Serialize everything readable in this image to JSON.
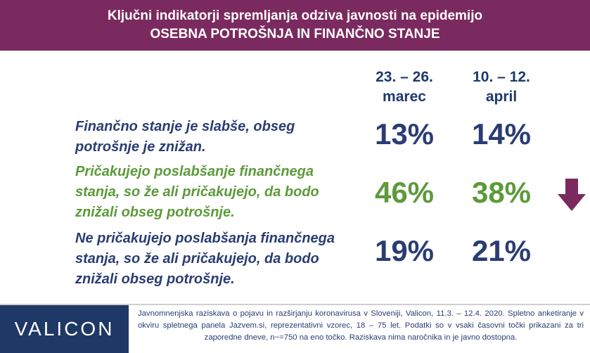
{
  "header": {
    "title_line1": "Ključni indikatorji spremljanja odziva javnosti na epidemijo",
    "title_line2": "OSEBNA POTROŠNJA IN FINANČNO STANJE"
  },
  "columns": [
    {
      "line1": "23. – 26.",
      "line2": "marec"
    },
    {
      "line1": "10. – 12.",
      "line2": "april"
    }
  ],
  "rows": [
    {
      "lines": [
        "Finančno stanje je slabše, obseg",
        "potrošnje je znižan."
      ],
      "values": [
        "13%",
        "14%"
      ],
      "color": "#2a3d73"
    },
    {
      "lines": [
        "Pričakujejo poslabšanje finančnega",
        "stanja, so že ali pričakujejo, da bodo",
        "znižali obseg potrošnje."
      ],
      "values": [
        "46%",
        "38%"
      ],
      "color": "#5c9a3a"
    },
    {
      "lines": [
        "Ne pričakujejo poslabšanja finančnega",
        "stanja, so že ali pričakujejo, da bodo",
        "znižali obseg potrošnje."
      ],
      "values": [
        "19%",
        "21%"
      ],
      "color": "#2a3d73"
    }
  ],
  "trend_icon": "arrow-down-icon",
  "trend_color": "#7a2a5e",
  "brand_color": "#7a2a5e",
  "footer": {
    "logo": "VALICON",
    "note": "Javnomnenjska raziskava o pojavu in razširjanju koronavirusa v Sloveniji, Valicon, 11.3. – 12.4. 2020. Spletno anketiranje v okviru spletnega panela Jazvem.si, reprezentativni vzorec, 18 – 75 let. Podatki so v vsaki časovni točki prikazani za tri zaporedne dneve, n~=750 na eno točko. Raziskava nima naročnika in je javno dostopna."
  }
}
